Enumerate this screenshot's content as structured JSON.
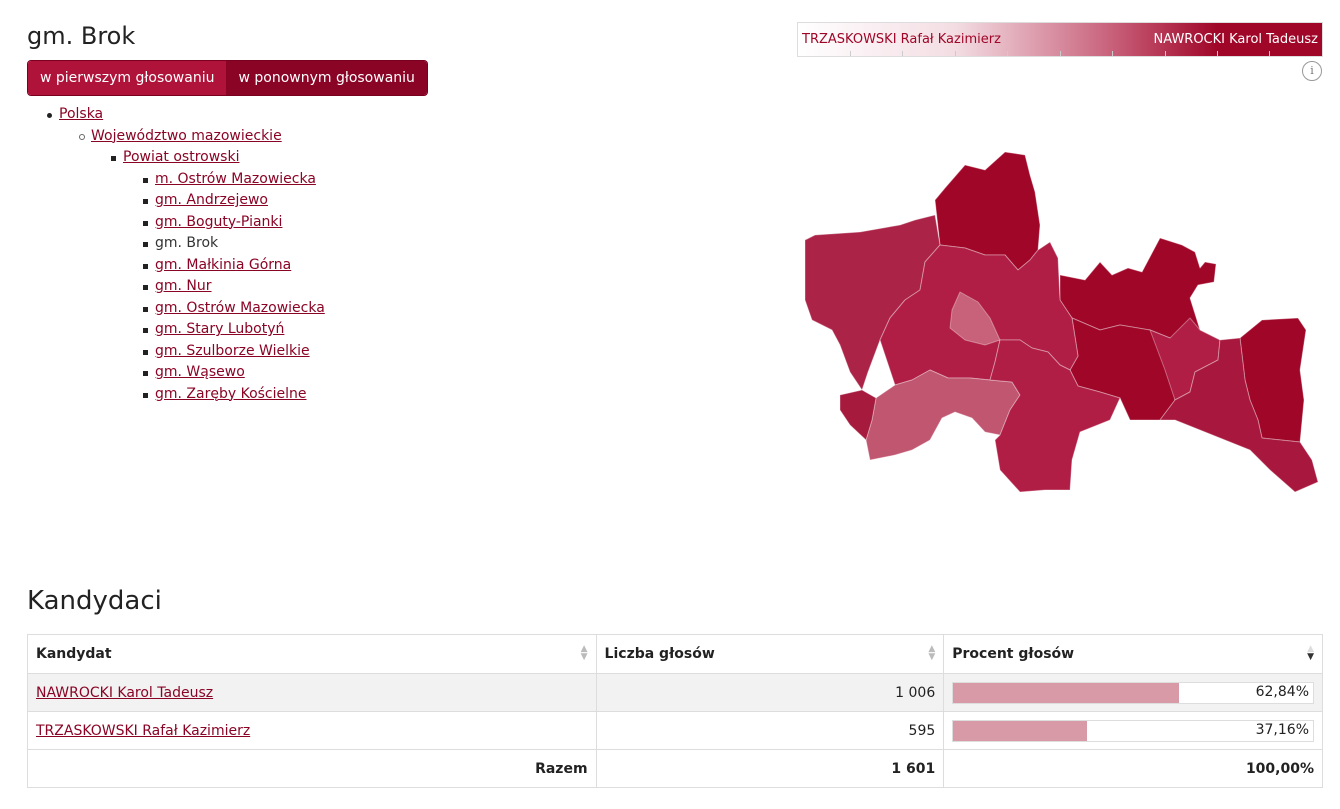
{
  "page": {
    "title": "gm. Brok"
  },
  "tabs": {
    "first": "w pierwszym głosowaniu",
    "second": "w ponownym głosowaniu"
  },
  "tree": {
    "country": "Polska",
    "voivodeship": "Województwo mazowieckie",
    "county": "Powiat ostrowski",
    "gminas": [
      {
        "label": "m. Ostrów Mazowiecka",
        "current": false
      },
      {
        "label": "gm. Andrzejewo",
        "current": false
      },
      {
        "label": "gm. Boguty-Pianki",
        "current": false
      },
      {
        "label": "gm. Brok",
        "current": true
      },
      {
        "label": "gm. Małkinia Górna",
        "current": false
      },
      {
        "label": "gm. Nur",
        "current": false
      },
      {
        "label": "gm. Ostrów Mazowiecka",
        "current": false
      },
      {
        "label": "gm. Stary Lubotyń",
        "current": false
      },
      {
        "label": "gm. Szulborze Wielkie",
        "current": false
      },
      {
        "label": "gm. Wąsewo",
        "current": false
      },
      {
        "label": "gm. Zaręby Kościelne",
        "current": false
      }
    ]
  },
  "legend": {
    "left": "TRZASKOWSKI Rafał Kazimierz",
    "right": "NAWROCKI Karol Tadeusz",
    "info_glyph": "i"
  },
  "colors": {
    "dark": "#a00628",
    "mid": "#b22548",
    "light": "#c05670",
    "lighter": "#c8627a"
  },
  "candidates": {
    "section_title": "Kandydaci",
    "headers": {
      "name": "Kandydat",
      "votes": "Liczba głosów",
      "percent": "Procent głosów"
    },
    "rows": [
      {
        "name": "NAWROCKI Karol Tadeusz",
        "votes": "1 006",
        "percent": "62,84%",
        "share": 62.84
      },
      {
        "name": "TRZASKOWSKI Rafał Kazimierz",
        "votes": "595",
        "percent": "37,16%",
        "share": 37.16
      }
    ],
    "total": {
      "label": "Razem",
      "votes": "1 601",
      "percent": "100,00%"
    }
  }
}
